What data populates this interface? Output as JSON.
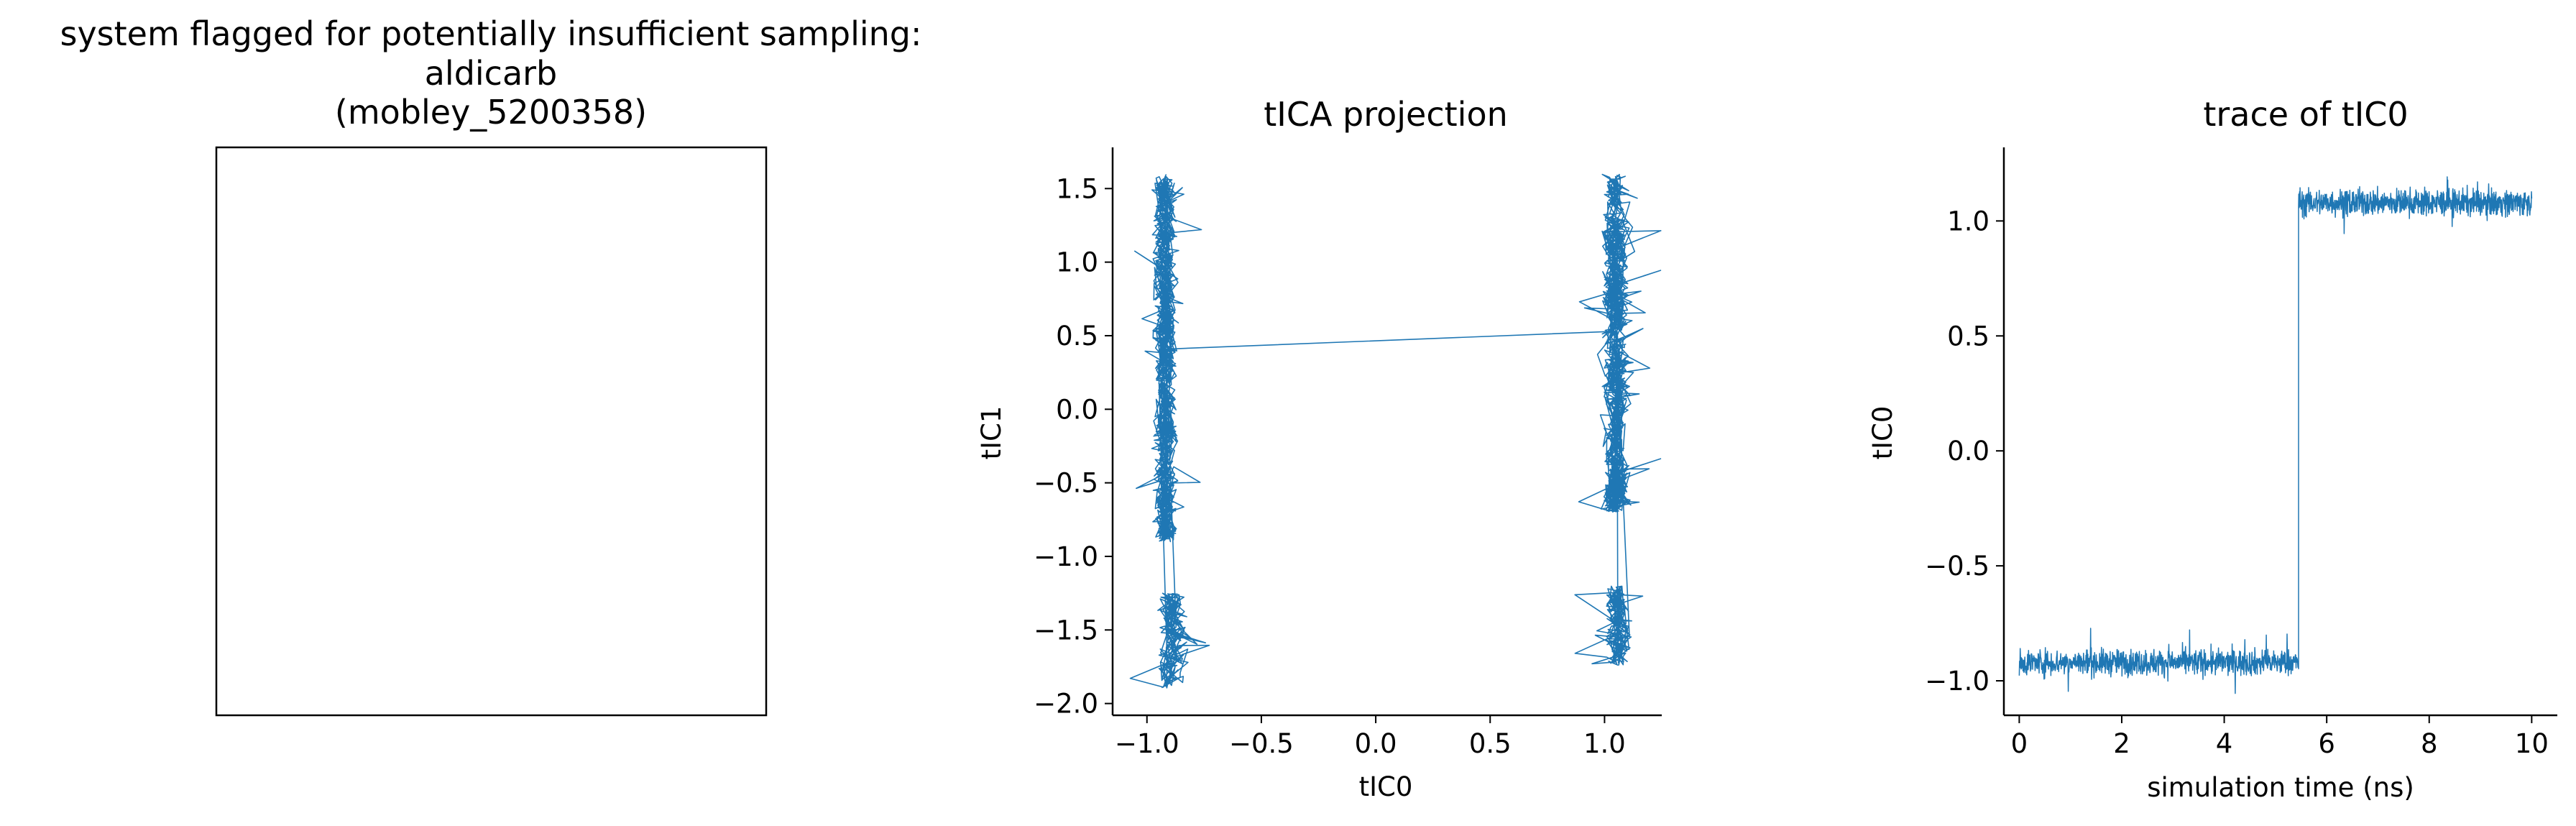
{
  "figure": {
    "colors": {
      "series": "#1f77b4",
      "axes": "#000000",
      "background": "#ffffff"
    }
  },
  "panels": [
    {
      "title_lines": [
        "system flagged for potentially insufficient sampling:",
        "aldicarb",
        "(mobley_5200358)"
      ]
    }
  ],
  "chart_data": [
    {
      "type": "line",
      "title": "tICA projection",
      "xlabel": "tIC0",
      "ylabel": "tIC1",
      "xlim": [
        -1.15,
        1.25
      ],
      "ylim": [
        -2.08,
        1.78
      ],
      "xticks": [
        -1.0,
        -0.5,
        0.0,
        0.5,
        1.0
      ],
      "xtick_labels": [
        "−1.0",
        "−0.5",
        "0.0",
        "0.5",
        "1.0"
      ],
      "yticks": [
        -2.0,
        -1.5,
        -1.0,
        -0.5,
        0.0,
        0.5,
        1.0,
        1.5
      ],
      "ytick_labels": [
        "−2.0",
        "−1.5",
        "−1.0",
        "−0.5",
        "0.0",
        "0.5",
        "1.0",
        "1.5"
      ],
      "grid": false,
      "series": [
        {
          "clusters": [
            {
              "x_range": [
                -0.99,
                -0.85
              ],
              "y_range": [
                -0.9,
                1.6
              ]
            },
            {
              "x_range": [
                -0.98,
                -0.8
              ],
              "y_range": [
                -1.9,
                -1.25
              ]
            },
            {
              "x_range": [
                0.97,
                1.13
              ],
              "y_range": [
                -0.7,
                1.6
              ]
            },
            {
              "x_range": [
                0.98,
                1.14
              ],
              "y_range": [
                -1.75,
                -1.2
              ]
            }
          ],
          "transition": {
            "x": [
              -0.9,
              1.05
            ],
            "y": [
              0.41,
              0.53
            ]
          }
        }
      ]
    },
    {
      "type": "line",
      "title": "trace of tIC0",
      "xlabel": "simulation time (ns)",
      "ylabel": "tIC0",
      "xlim": [
        -0.3,
        10.5
      ],
      "ylim": [
        -1.15,
        1.32
      ],
      "xticks": [
        0,
        2,
        4,
        6,
        8,
        10
      ],
      "xtick_labels": [
        "0",
        "2",
        "4",
        "6",
        "8",
        "10"
      ],
      "yticks": [
        -1.0,
        -0.5,
        0.0,
        0.5,
        1.0
      ],
      "ytick_labels": [
        "−1.0",
        "−0.5",
        "0.0",
        "0.5",
        "1.0"
      ],
      "grid": false,
      "series": [
        {
          "segments": [
            {
              "x_range": [
                0,
                5.45
              ],
              "mean": -0.92,
              "spread": 0.04
            },
            {
              "x_range": [
                5.45,
                10
              ],
              "mean": 1.08,
              "spread": 0.04
            }
          ]
        }
      ]
    }
  ]
}
